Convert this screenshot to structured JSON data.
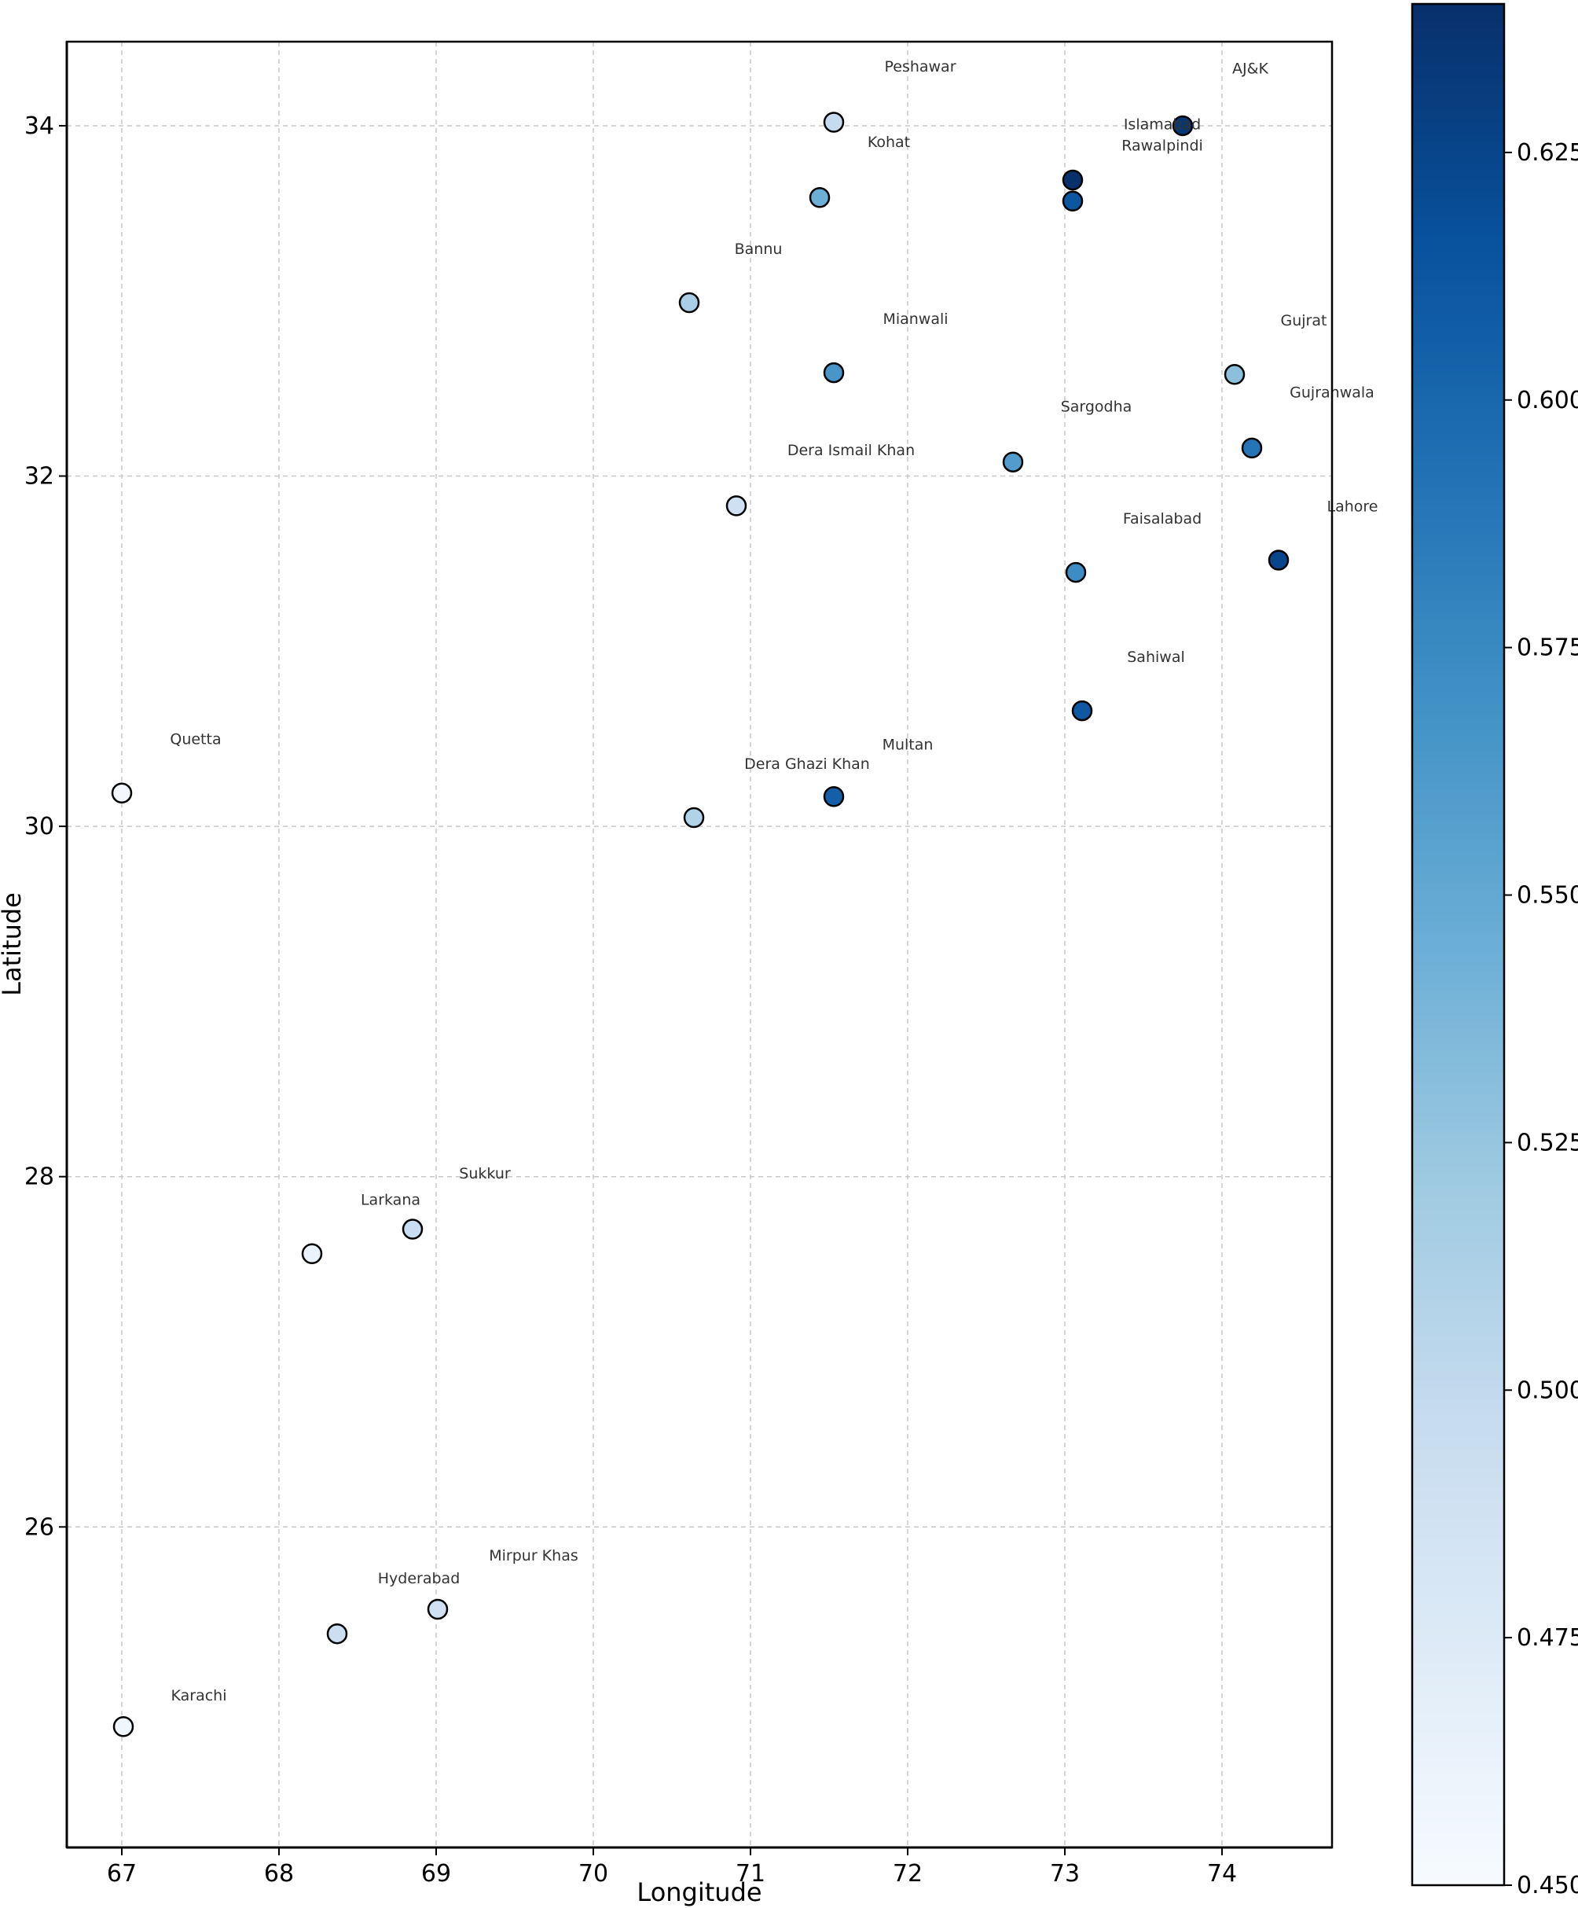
{
  "chart_data": {
    "type": "scatter",
    "title": "",
    "xlabel": "Longitude",
    "ylabel": "Latitude",
    "xlim": [
      66.65,
      74.7
    ],
    "ylim": [
      24.17,
      34.48
    ],
    "xticks": [
      67,
      68,
      69,
      70,
      71,
      72,
      73,
      74
    ],
    "yticks": [
      26,
      28,
      30,
      32,
      34
    ],
    "grid": true,
    "colormap": "Blues",
    "colorbar": {
      "min": 0.45,
      "max": 0.64,
      "ticks": [
        "0.450",
        "0.475",
        "0.500",
        "0.525",
        "0.550",
        "0.575",
        "0.600",
        "0.625"
      ]
    },
    "points": [
      {
        "x": 67.0,
        "y": 30.19,
        "value": 0.455
      },
      {
        "x": 67.01,
        "y": 24.86,
        "value": 0.458
      },
      {
        "x": 68.21,
        "y": 27.56,
        "value": 0.462
      },
      {
        "x": 68.37,
        "y": 25.39,
        "value": 0.492
      },
      {
        "x": 68.85,
        "y": 27.7,
        "value": 0.495
      },
      {
        "x": 69.01,
        "y": 25.53,
        "value": 0.488
      },
      {
        "x": 70.61,
        "y": 32.99,
        "value": 0.515
      },
      {
        "x": 70.64,
        "y": 30.05,
        "value": 0.51
      },
      {
        "x": 70.91,
        "y": 31.83,
        "value": 0.49
      },
      {
        "x": 71.44,
        "y": 33.59,
        "value": 0.545
      },
      {
        "x": 71.53,
        "y": 34.02,
        "value": 0.498
      },
      {
        "x": 71.53,
        "y": 32.59,
        "value": 0.565
      },
      {
        "x": 71.53,
        "y": 30.17,
        "value": 0.605
      },
      {
        "x": 72.67,
        "y": 32.08,
        "value": 0.56
      },
      {
        "x": 73.05,
        "y": 33.69,
        "value": 0.64
      },
      {
        "x": 73.05,
        "y": 33.57,
        "value": 0.612
      },
      {
        "x": 73.07,
        "y": 31.45,
        "value": 0.572
      },
      {
        "x": 73.11,
        "y": 30.66,
        "value": 0.61
      },
      {
        "x": 73.75,
        "y": 34.0,
        "value": 0.635
      },
      {
        "x": 74.08,
        "y": 32.58,
        "value": 0.53
      },
      {
        "x": 74.19,
        "y": 32.16,
        "value": 0.59
      },
      {
        "x": 74.36,
        "y": 31.52,
        "value": 0.625
      }
    ],
    "labels": [
      {
        "text": "Peshawar",
        "x": 72.08,
        "y": 34.34
      },
      {
        "text": "AJ&K",
        "x": 74.18,
        "y": 34.33
      },
      {
        "text": "Islamabad",
        "x": 73.62,
        "y": 34.01
      },
      {
        "text": "Kohat",
        "x": 71.88,
        "y": 33.91
      },
      {
        "text": "Rawalpindi",
        "x": 73.62,
        "y": 33.89
      },
      {
        "text": "Bannu",
        "x": 71.05,
        "y": 33.3
      },
      {
        "text": "Mianwali",
        "x": 72.05,
        "y": 32.9
      },
      {
        "text": "Gujrat",
        "x": 74.52,
        "y": 32.89
      },
      {
        "text": "Gujranwala",
        "x": 74.7,
        "y": 32.48
      },
      {
        "text": "Sargodha",
        "x": 73.2,
        "y": 32.4
      },
      {
        "text": "Dera Ismail Khan",
        "x": 71.64,
        "y": 32.15
      },
      {
        "text": "Lahore",
        "x": 74.83,
        "y": 31.83
      },
      {
        "text": "Faisalabad",
        "x": 73.62,
        "y": 31.76
      },
      {
        "text": "Sahiwal",
        "x": 73.58,
        "y": 30.97
      },
      {
        "text": "Quetta",
        "x": 67.47,
        "y": 30.5
      },
      {
        "text": "Multan",
        "x": 72.0,
        "y": 30.47
      },
      {
        "text": "Dera Ghazi Khan",
        "x": 71.36,
        "y": 30.36
      },
      {
        "text": "Sukkur",
        "x": 69.31,
        "y": 28.02
      },
      {
        "text": "Larkana",
        "x": 68.71,
        "y": 27.87
      },
      {
        "text": "Mirpur Khas",
        "x": 69.62,
        "y": 25.84
      },
      {
        "text": "Hyderabad",
        "x": 68.89,
        "y": 25.71
      },
      {
        "text": "Karachi",
        "x": 67.49,
        "y": 25.04
      }
    ]
  }
}
